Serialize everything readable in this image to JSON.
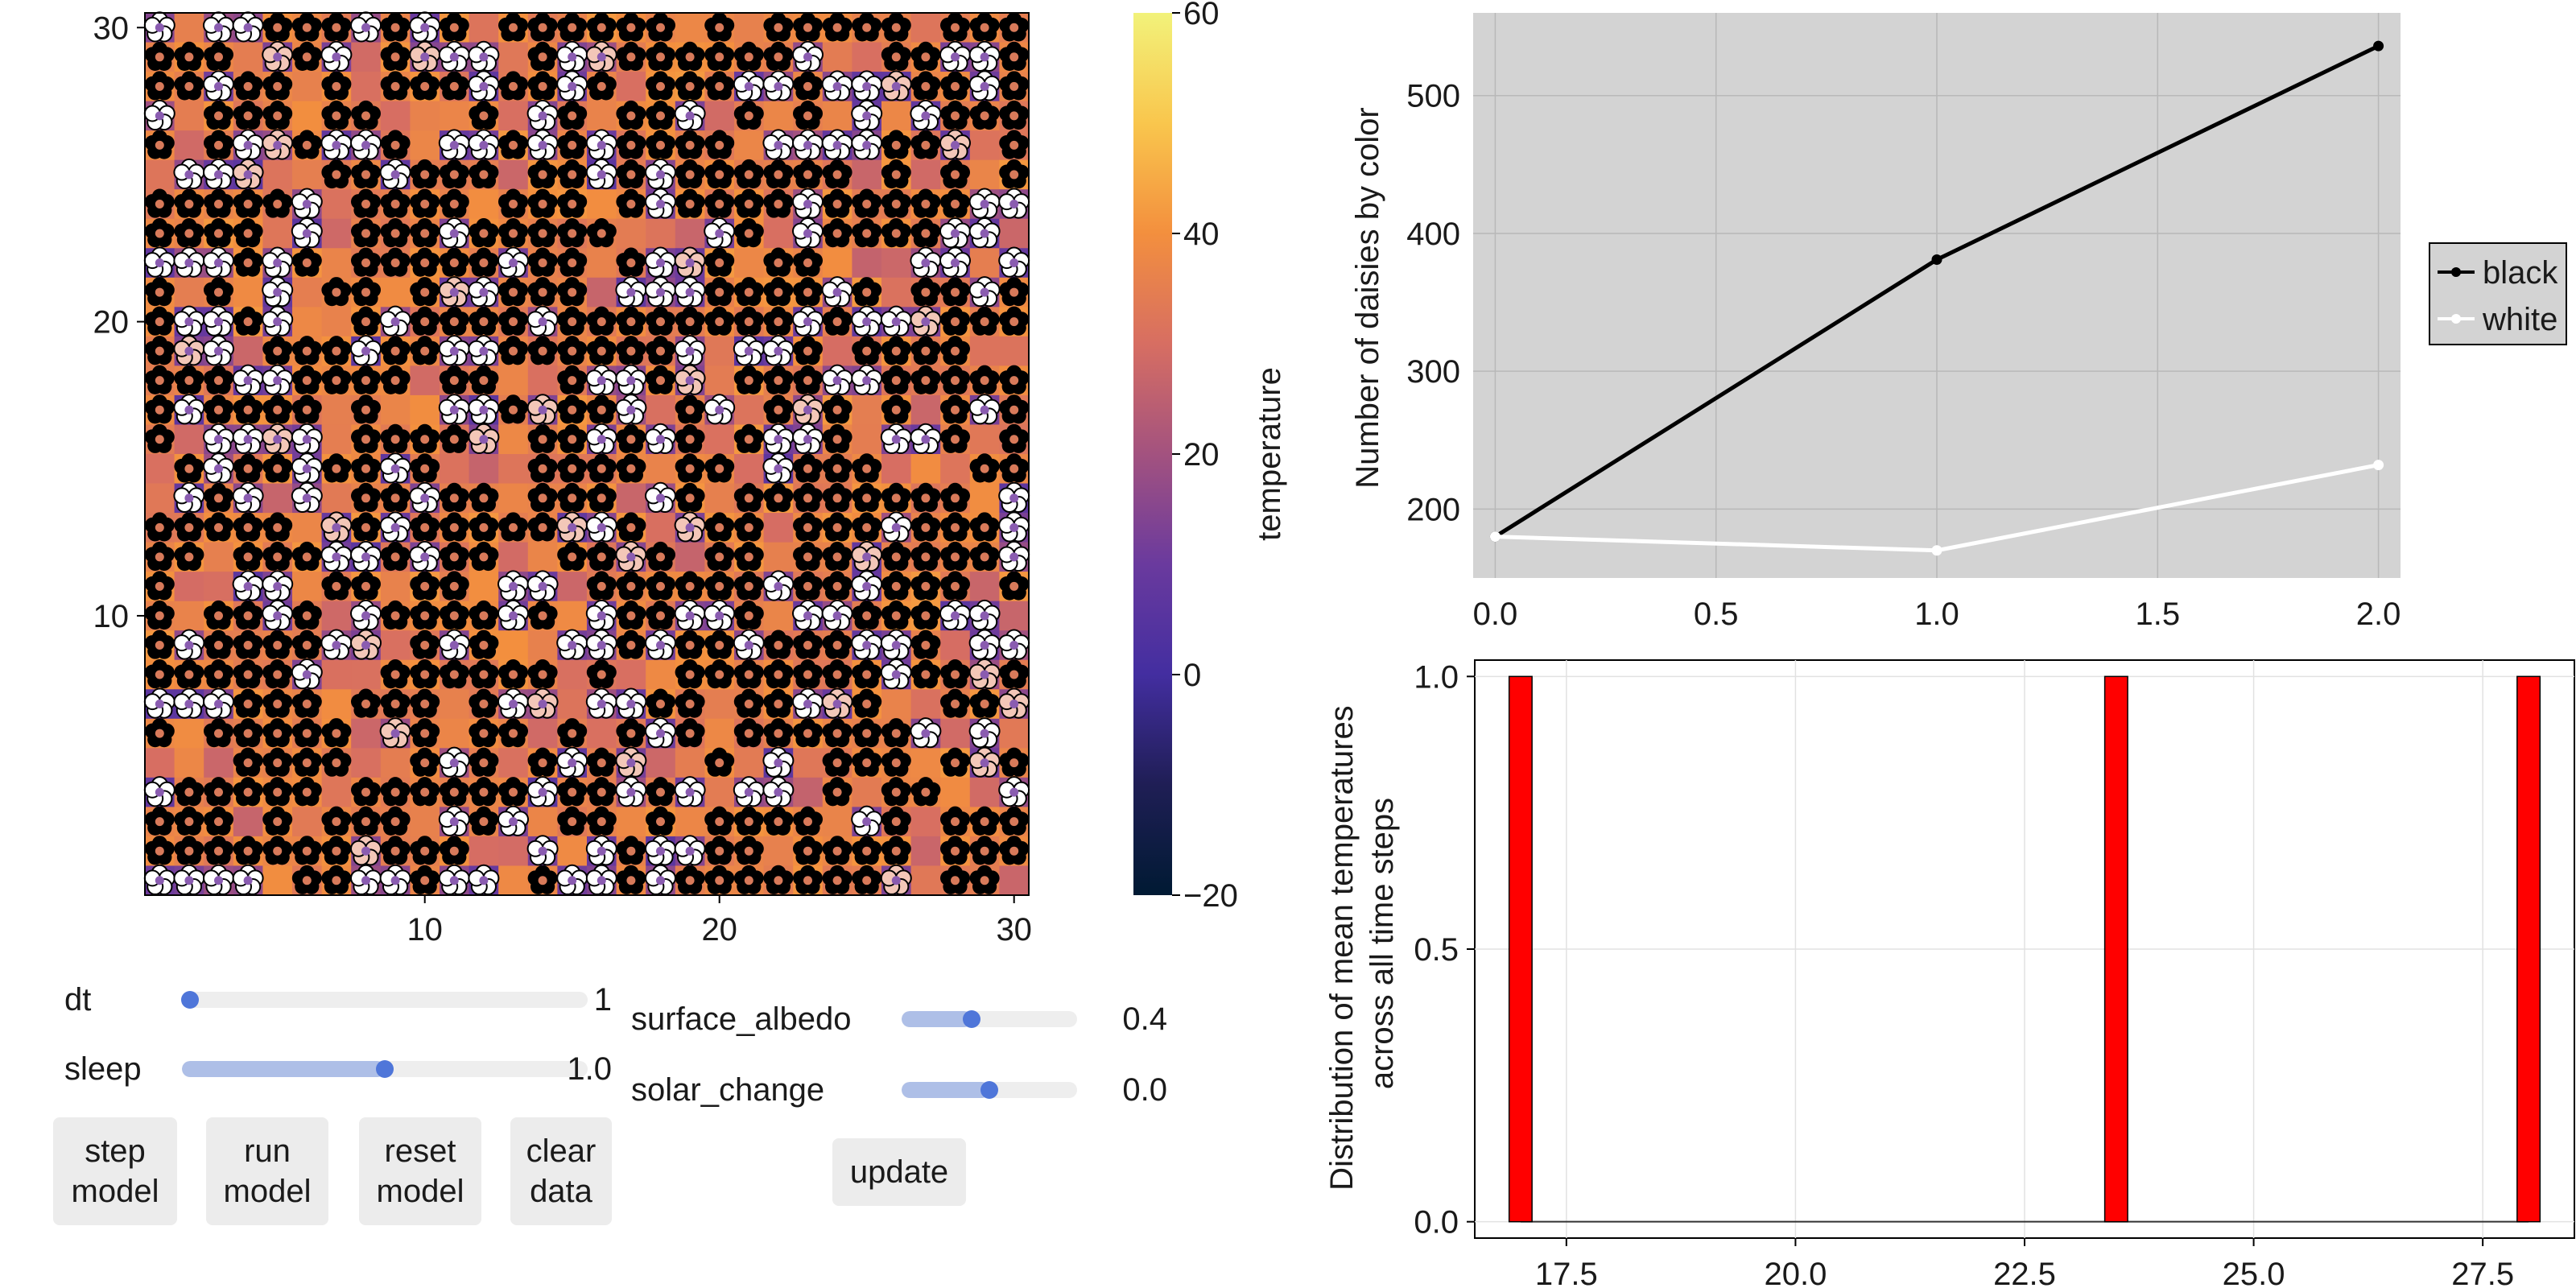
{
  "colors": {
    "colormap": [
      "#001a33",
      "#1f1e55",
      "#432ea0",
      "#6a3a9e",
      "#a3527f",
      "#d76e62",
      "#f38f3e",
      "#f9c64d",
      "#f2f27a"
    ],
    "black_daisy": "#000000",
    "white_daisy": "#ffffff",
    "plot_background": "#d3d3d3",
    "histogram_bar": "#ff0000",
    "slider_fill": "#aebfe7",
    "slider_knob": "#4f76d9"
  },
  "heatmap": {
    "x_ticks": [
      "10",
      "20",
      "30"
    ],
    "y_ticks": [
      "10",
      "20",
      "30"
    ],
    "colorbar": {
      "label": "temperature",
      "ticks": [
        "60",
        "40",
        "20",
        "0",
        "−20"
      ],
      "range": [
        -20,
        60
      ]
    }
  },
  "controls": {
    "sliders_left": [
      {
        "label": "dt",
        "value": "1",
        "fraction": 0.02
      },
      {
        "label": "sleep",
        "value": "1.0",
        "fraction": 0.5
      }
    ],
    "sliders_right": [
      {
        "label": "surface_albedo",
        "value": "0.4",
        "fraction": 0.4
      },
      {
        "label": "solar_change",
        "value": "0.0",
        "fraction": 0.5
      }
    ],
    "buttons": {
      "step": "step\nmodel",
      "run": "run\nmodel",
      "reset": "reset\nmodel",
      "clear": "clear\ndata",
      "update": "update"
    }
  },
  "chart_data": [
    {
      "type": "line",
      "x": [
        0.0,
        1.0,
        2.0
      ],
      "series": [
        {
          "name": "black",
          "values": [
            180,
            381,
            536
          ],
          "color": "#000000"
        },
        {
          "name": "white",
          "values": [
            180,
            170,
            232
          ],
          "color": "#ffffff"
        }
      ],
      "ylabel": "Number of daisies by color",
      "xlabel": "",
      "xlim": [
        -0.05,
        2.05
      ],
      "ylim": [
        150,
        560
      ],
      "x_ticks": [
        "0.0",
        "0.5",
        "1.0",
        "1.5",
        "2.0"
      ],
      "y_ticks": [
        "200",
        "300",
        "400",
        "500"
      ],
      "grid": true,
      "legend": "outside-right"
    },
    {
      "type": "bar",
      "categories": [
        "17.0",
        "23.5",
        "28.0"
      ],
      "x": [
        17.0,
        23.5,
        28.0
      ],
      "values": [
        1.0,
        1.0,
        1.0
      ],
      "bin_width": 0.25,
      "ylabel": "Distribution of mean temperatures\nacross all time steps",
      "xlabel": "",
      "xlim": [
        16.5,
        28.5
      ],
      "ylim": [
        -0.03,
        1.03
      ],
      "x_ticks": [
        "17.5",
        "20.0",
        "22.5",
        "25.0",
        "27.5"
      ],
      "y_ticks": [
        "0.0",
        "0.5",
        "1.0"
      ],
      "grid": true
    }
  ]
}
